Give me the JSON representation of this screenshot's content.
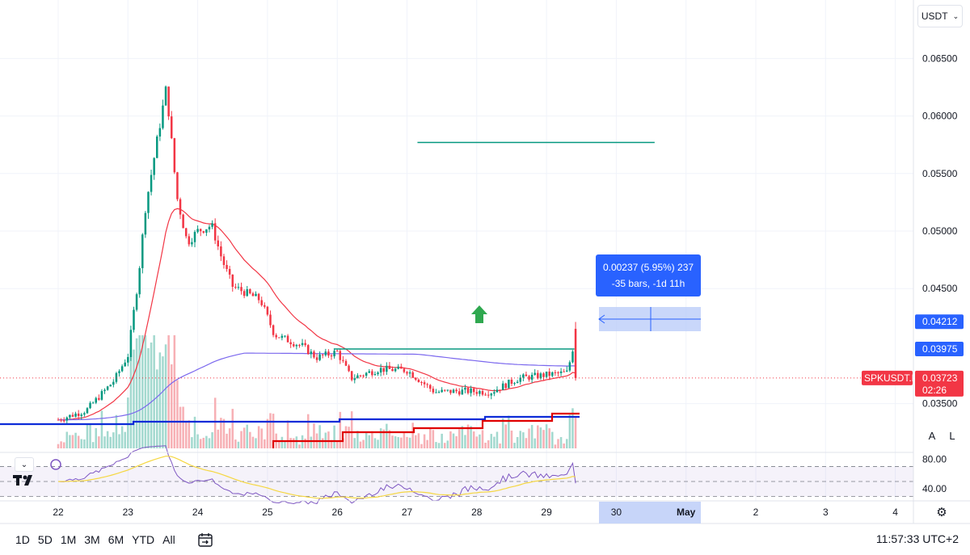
{
  "header": {
    "currency": "USDT"
  },
  "price_axis": {
    "ticks": [
      "0.06500",
      "0.06000",
      "0.05500",
      "0.05000",
      "0.04500",
      "0.03500"
    ],
    "tags": [
      {
        "label": "0.04212",
        "value": 0.04212,
        "bg": "#2962ff"
      },
      {
        "label": "0.03975",
        "value": 0.03975,
        "bg": "#2962ff"
      }
    ],
    "last_price": {
      "symbol": "SPKUSDT.P",
      "label": "0.03723",
      "value": 0.03723,
      "countdown": "02:26",
      "bg": "#f23645"
    }
  },
  "rsi_axis": {
    "ticks": [
      "80.00",
      "40.00"
    ]
  },
  "time_axis": {
    "labels": [
      "22",
      "23",
      "24",
      "25",
      "26",
      "27",
      "28",
      "29",
      "30",
      "May",
      "2",
      "3",
      "4"
    ],
    "highlight": [
      8,
      9
    ]
  },
  "measure": {
    "line1": "0.00237 (5.95%) 237",
    "line2": "-35 bars, -1d 11h"
  },
  "scale_toggles": {
    "auto": "A",
    "log": "L"
  },
  "bottom_bar": {
    "ranges": [
      "1D",
      "5D",
      "1M",
      "3M",
      "6M",
      "YTD",
      "All"
    ],
    "time": "11:57:33 UTC+2"
  },
  "colors": {
    "up": "#089981",
    "down": "#f23645",
    "ema_short": "#f23645",
    "ema_long": "#7b68ee",
    "support": "#0d2bd8",
    "trail": "#e00000",
    "rsi": "#7e57c2",
    "rsi_ma": "#f5d742"
  },
  "chart_data": {
    "type": "candlestick",
    "symbol": "SPKUSDT.P",
    "x_labels": [
      "22",
      "23",
      "24",
      "25",
      "26",
      "27",
      "28",
      "29"
    ],
    "price_range": [
      0.0335,
      0.0665
    ],
    "candles_per_day": 24,
    "last_price": 0.03723,
    "horizontal_lines": [
      {
        "value": 0.0577,
        "from_day": 27.15,
        "to_day": 30.55,
        "color": "#089981"
      },
      {
        "value": 0.03975,
        "from_day": 25.95,
        "to_day": 29.4,
        "color": "#089981"
      }
    ],
    "close_path": [
      {
        "day": 22.0,
        "close": 0.0336
      },
      {
        "day": 22.4,
        "close": 0.0344
      },
      {
        "day": 22.8,
        "close": 0.037
      },
      {
        "day": 23.0,
        "close": 0.0392
      },
      {
        "day": 23.15,
        "close": 0.046
      },
      {
        "day": 23.25,
        "close": 0.052
      },
      {
        "day": 23.45,
        "close": 0.059
      },
      {
        "day": 23.55,
        "close": 0.0625
      },
      {
        "day": 23.7,
        "close": 0.053
      },
      {
        "day": 23.85,
        "close": 0.049
      },
      {
        "day": 24.0,
        "close": 0.05
      },
      {
        "day": 24.2,
        "close": 0.0505
      },
      {
        "day": 24.35,
        "close": 0.0475
      },
      {
        "day": 24.5,
        "close": 0.0452
      },
      {
        "day": 24.9,
        "close": 0.044
      },
      {
        "day": 25.1,
        "close": 0.041
      },
      {
        "day": 25.5,
        "close": 0.04
      },
      {
        "day": 25.7,
        "close": 0.039
      },
      {
        "day": 26.0,
        "close": 0.0395
      },
      {
        "day": 26.2,
        "close": 0.0372
      },
      {
        "day": 26.6,
        "close": 0.038
      },
      {
        "day": 27.0,
        "close": 0.0379
      },
      {
        "day": 27.4,
        "close": 0.036
      },
      {
        "day": 27.8,
        "close": 0.0361
      },
      {
        "day": 28.2,
        "close": 0.036
      },
      {
        "day": 28.6,
        "close": 0.0372
      },
      {
        "day": 29.0,
        "close": 0.0375
      },
      {
        "day": 29.3,
        "close": 0.0377
      },
      {
        "day": 29.38,
        "close": 0.0399
      },
      {
        "day": 29.45,
        "close": 0.0372
      }
    ],
    "rsi_ticks": [
      80,
      40
    ],
    "rsi_range": [
      25,
      88
    ],
    "rsi_levels": [
      70,
      50,
      30
    ]
  }
}
